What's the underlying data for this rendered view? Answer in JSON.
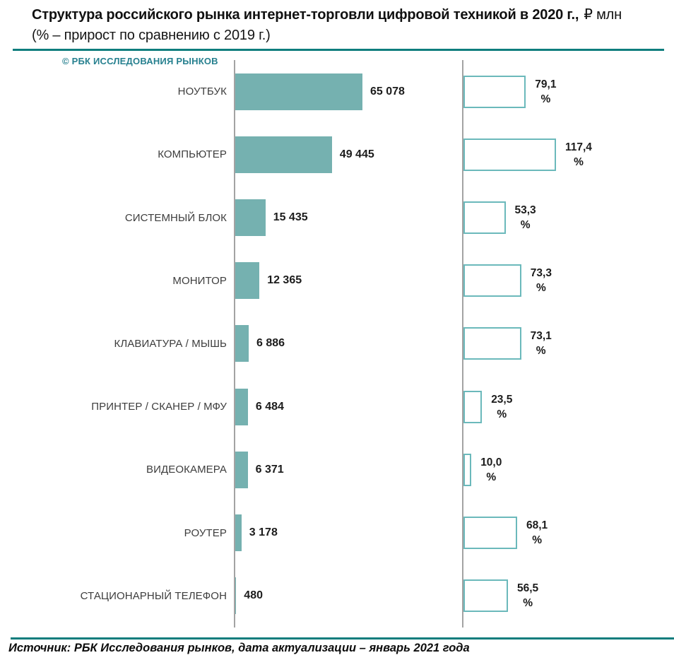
{
  "title": {
    "line1_bold": "Структура российского рынка интернет-торговли цифровой техникой в 2020 г.,",
    "line1_unit": "₽ млн",
    "line2": "(% – прирост по сравнению с 2019 г.)"
  },
  "watermark": "© РБК ИССЛЕДОВАНИЯ РЫНКОВ",
  "footer": {
    "source": "Источник: РБК Исследования рынков, дата актуализации – январь 2021 года"
  },
  "colors": {
    "bar_fill": "#75b1b0",
    "bar_outline": "#6bb9bb",
    "axis": "#a3a3a3",
    "divider": "#0f7d7d",
    "watermark_color": "#26808f",
    "text": "#1a1a1a",
    "category_text": "#3d3d3d"
  },
  "chart_data": {
    "type": "bar",
    "orientation": "horizontal",
    "title": "Структура российского рынка интернет-торговли цифровой техникой в 2020 г., ₽ млн (% – прирост по сравнению с 2019 г.)",
    "grid": false,
    "legend": false,
    "percent_sign": "%",
    "categories": [
      "НОУТБУК",
      "КОМПЬЮТЕР",
      "СИСТЕМНЫЙ БЛОК",
      "МОНИТОР",
      "КЛАВИАТУРА / МЫШЬ",
      "ПРИНТЕР / СКАНЕР / МФУ",
      "ВИДЕОКАМЕРА",
      "РОУТЕР",
      "СТАЦИОНАРНЫЙ ТЕЛЕФОН"
    ],
    "series": [
      {
        "name": "Объем рынка в 2020 г., ₽ млн",
        "values": [
          65078,
          49445,
          15435,
          12365,
          6886,
          6484,
          6371,
          3178,
          480
        ],
        "labels": [
          "65 078",
          "49 445",
          "15 435",
          "12 365",
          "6 886",
          "6 484",
          "6 371",
          "3 178",
          "480"
        ]
      },
      {
        "name": "Прирост по сравнению с 2019 г., %",
        "values": [
          79.1,
          117.4,
          53.3,
          73.3,
          73.1,
          23.5,
          10.0,
          68.1,
          56.5
        ],
        "labels": [
          "79,1",
          "117,4",
          "53,3",
          "73,3",
          "73,1",
          "23,5",
          "10,0",
          "68,1",
          "56,5"
        ]
      }
    ],
    "value_axis": {
      "min": 0,
      "max": 65078
    },
    "percent_axis": {
      "min": 0,
      "max": 117.4
    }
  }
}
